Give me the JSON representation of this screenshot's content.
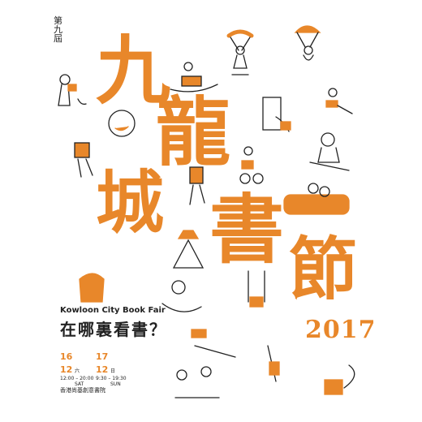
{
  "edition": "第九屆",
  "title_chars": [
    "九",
    "龍",
    "城",
    "書",
    "節"
  ],
  "year": "2017",
  "english_name": "Kowloon City Book Fair",
  "tagline": "在哪裏看書？",
  "dates": [
    {
      "day": "16",
      "month": "12",
      "weekday_zh": "六",
      "weekday_en": "SAT",
      "hours": "12:00 – 20:00"
    },
    {
      "day": "17",
      "month": "12",
      "weekday_zh": "日",
      "weekday_en": "SUN",
      "hours": "9:30 – 19:30"
    }
  ],
  "venue": "香港尚基創意書院",
  "colors": {
    "accent": "#e8872a",
    "ink": "#222222",
    "background": "#ffffff"
  }
}
